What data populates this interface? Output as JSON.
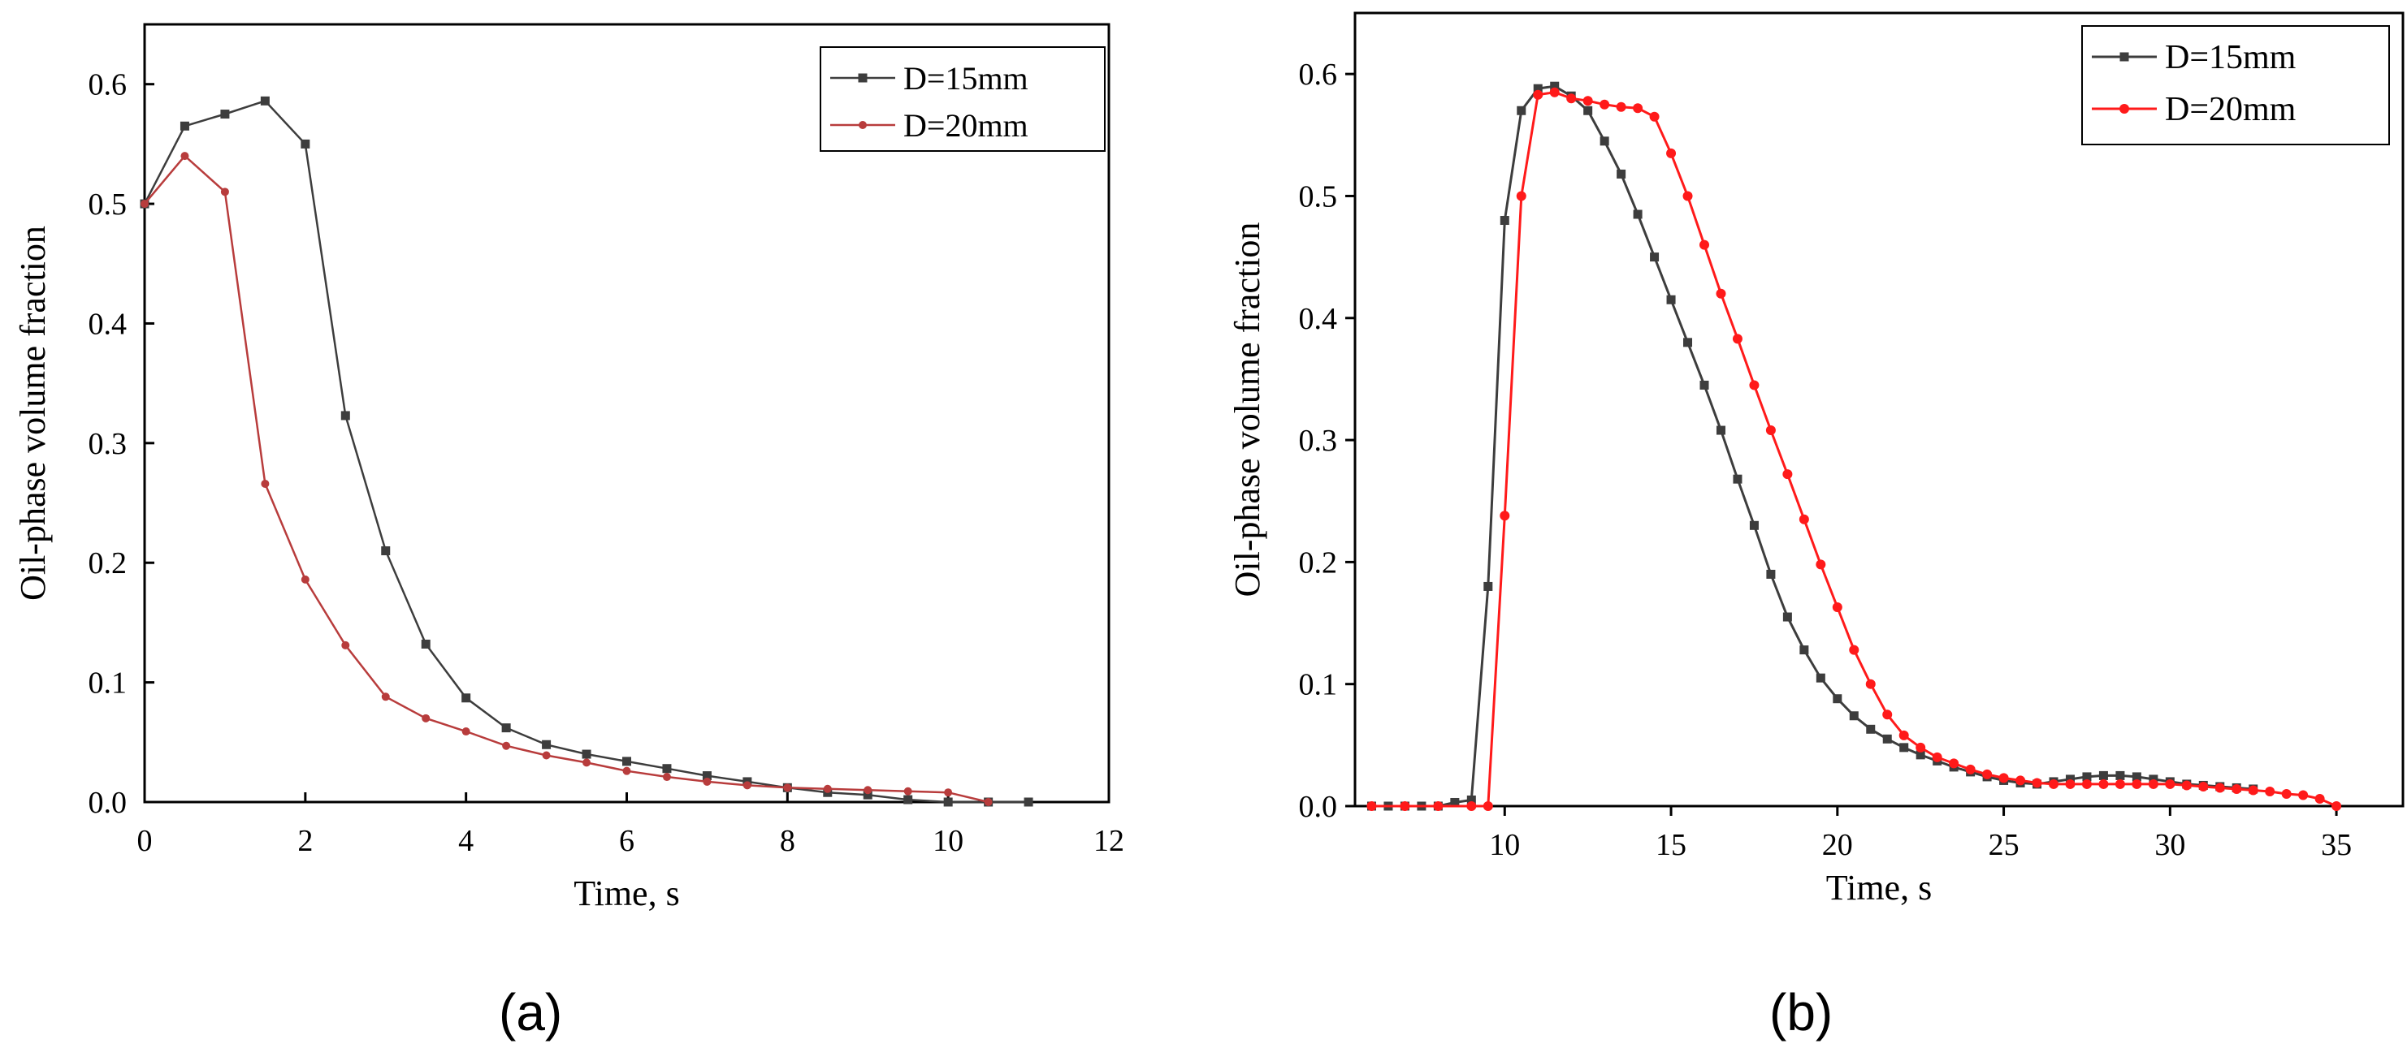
{
  "panel_labels": {
    "a": "(a)",
    "b": "(b)"
  },
  "colors": {
    "a_s1": "#3d3d3d",
    "a_s2": "#b83c3c",
    "b_s1": "#3d3d3d",
    "b_s2": "#ff1a1a"
  },
  "chart_data": [
    {
      "id": "a",
      "type": "line",
      "title": "",
      "xlabel": "Time, s",
      "ylabel": "Oil-phase volume fraction",
      "xlim": [
        0,
        12
      ],
      "ylim": [
        0,
        0.65
      ],
      "xticks": [
        0,
        2,
        4,
        6,
        8,
        10,
        12
      ],
      "yticks": [
        0.0,
        0.1,
        0.2,
        0.3,
        0.4,
        0.5,
        0.6
      ],
      "ytick_labels": [
        "0.0",
        "0.1",
        "0.2",
        "0.3",
        "0.4",
        "0.5",
        "0.6"
      ],
      "legend_position": "top-right",
      "series": [
        {
          "name": "D=15mm",
          "marker": "square",
          "x": [
            0,
            0.5,
            1.0,
            1.5,
            2.0,
            2.5,
            3.0,
            3.5,
            4.0,
            4.5,
            5.0,
            5.5,
            6.0,
            6.5,
            7.0,
            7.5,
            8.0,
            8.5,
            9.0,
            9.5,
            10.0,
            10.5,
            11.0
          ],
          "y": [
            0.5,
            0.565,
            0.575,
            0.586,
            0.55,
            0.323,
            0.21,
            0.132,
            0.087,
            0.062,
            0.048,
            0.04,
            0.034,
            0.028,
            0.022,
            0.017,
            0.012,
            0.008,
            0.006,
            0.002,
            0.0,
            0.0,
            0.0
          ]
        },
        {
          "name": "D=20mm",
          "marker": "circle",
          "x": [
            0,
            0.5,
            1.0,
            1.5,
            2.0,
            2.5,
            3.0,
            3.5,
            4.0,
            4.5,
            5.0,
            5.5,
            6.0,
            6.5,
            7.0,
            7.5,
            8.0,
            8.5,
            9.0,
            9.5,
            10.0,
            10.5
          ],
          "y": [
            0.5,
            0.54,
            0.51,
            0.266,
            0.186,
            0.131,
            0.088,
            0.07,
            0.059,
            0.047,
            0.039,
            0.033,
            0.026,
            0.021,
            0.017,
            0.014,
            0.012,
            0.011,
            0.01,
            0.009,
            0.008,
            0.0
          ]
        }
      ]
    },
    {
      "id": "b",
      "type": "line",
      "title": "",
      "xlabel": "Time, s",
      "ylabel": "Oil-phase volume fraction",
      "xlim": [
        5.5,
        37
      ],
      "ylim": [
        0,
        0.65
      ],
      "xticks": [
        10,
        15,
        20,
        25,
        30,
        35
      ],
      "yticks": [
        0.0,
        0.1,
        0.2,
        0.3,
        0.4,
        0.5,
        0.6
      ],
      "ytick_labels": [
        "0.0",
        "0.1",
        "0.2",
        "0.3",
        "0.4",
        "0.5",
        "0.6"
      ],
      "legend_position": "top-right",
      "series": [
        {
          "name": "D=15mm",
          "marker": "square",
          "x": [
            6.0,
            6.5,
            7.0,
            7.5,
            8.0,
            8.5,
            9.0,
            9.5,
            10.0,
            10.5,
            11.0,
            11.5,
            12.0,
            12.5,
            13.0,
            13.5,
            14.0,
            14.5,
            15.0,
            15.5,
            16.0,
            16.5,
            17.0,
            17.5,
            18.0,
            18.5,
            19.0,
            19.5,
            20.0,
            20.5,
            21.0,
            21.5,
            22.0,
            22.5,
            23.0,
            23.5,
            24.0,
            24.5,
            25.0,
            25.5,
            26.0,
            26.5,
            27.0,
            27.5,
            28.0,
            28.5,
            29.0,
            29.5,
            30.0,
            30.5,
            31.0,
            31.5,
            32.0,
            32.5
          ],
          "y": [
            0.0,
            0.0,
            0.0,
            0.0,
            0.0,
            0.003,
            0.005,
            0.18,
            0.48,
            0.57,
            0.588,
            0.59,
            0.582,
            0.57,
            0.545,
            0.518,
            0.485,
            0.45,
            0.415,
            0.38,
            0.345,
            0.308,
            0.268,
            0.23,
            0.19,
            0.155,
            0.128,
            0.105,
            0.088,
            0.074,
            0.063,
            0.055,
            0.048,
            0.042,
            0.037,
            0.032,
            0.028,
            0.024,
            0.021,
            0.019,
            0.018,
            0.02,
            0.022,
            0.024,
            0.025,
            0.025,
            0.024,
            0.022,
            0.02,
            0.018,
            0.017,
            0.016,
            0.015,
            0.014
          ]
        },
        {
          "name": "D=20mm",
          "marker": "circle",
          "x": [
            6.0,
            7.0,
            8.0,
            9.0,
            9.5,
            10.0,
            10.5,
            11.0,
            11.5,
            12.0,
            12.5,
            13.0,
            13.5,
            14.0,
            14.5,
            15.0,
            15.5,
            16.0,
            16.5,
            17.0,
            17.5,
            18.0,
            18.5,
            19.0,
            19.5,
            20.0,
            20.5,
            21.0,
            21.5,
            22.0,
            22.5,
            23.0,
            23.5,
            24.0,
            24.5,
            25.0,
            25.5,
            26.0,
            26.5,
            27.0,
            27.5,
            28.0,
            28.5,
            29.0,
            29.5,
            30.0,
            30.5,
            31.0,
            31.5,
            32.0,
            32.5,
            33.0,
            33.5,
            34.0,
            34.5,
            35.0
          ],
          "y": [
            0.0,
            0.0,
            0.0,
            0.0,
            0.0,
            0.238,
            0.5,
            0.583,
            0.585,
            0.58,
            0.578,
            0.575,
            0.573,
            0.572,
            0.565,
            0.535,
            0.5,
            0.46,
            0.42,
            0.383,
            0.345,
            0.308,
            0.272,
            0.235,
            0.198,
            0.163,
            0.128,
            0.1,
            0.075,
            0.058,
            0.048,
            0.04,
            0.035,
            0.03,
            0.026,
            0.023,
            0.021,
            0.019,
            0.018,
            0.018,
            0.018,
            0.018,
            0.018,
            0.018,
            0.018,
            0.018,
            0.017,
            0.016,
            0.015,
            0.014,
            0.013,
            0.012,
            0.01,
            0.009,
            0.006,
            0.0
          ]
        }
      ]
    }
  ]
}
